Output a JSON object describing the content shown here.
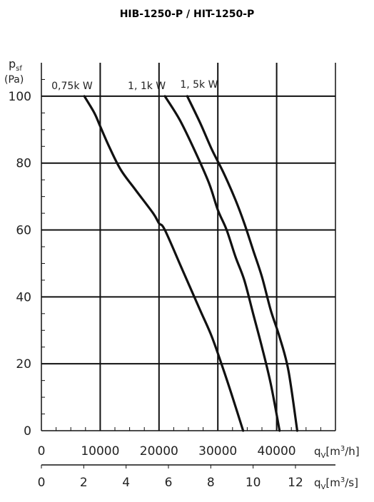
{
  "chart_data": {
    "type": "line",
    "title": "HIB-1250-P / HIT-1250-P",
    "ylabel": {
      "symbol": "p",
      "sub": "sf",
      "unit": "(Pa)"
    },
    "xlabel_primary": {
      "symbol": "q",
      "sub": "V",
      "unit_pre": "[m",
      "sup": "3",
      "unit_post": "/h]"
    },
    "xlabel_secondary": {
      "symbol": "q",
      "sub": "V",
      "unit_pre": "[m",
      "sup": "3",
      "unit_post": "/s]"
    },
    "xlim": [
      0,
      50000
    ],
    "ylim": [
      0,
      110
    ],
    "x_ticks": [
      0,
      10000,
      20000,
      30000,
      40000
    ],
    "x_tick_labels": [
      "0",
      "10000",
      "20000",
      "30000",
      "40000"
    ],
    "x2_ticks": [
      0,
      2,
      4,
      6,
      8,
      10,
      12
    ],
    "x2_tick_labels": [
      "0",
      "2",
      "4",
      "6",
      "8",
      "10",
      "12"
    ],
    "x2_factor": 3600,
    "y_ticks": [
      0,
      20,
      40,
      60,
      80,
      100
    ],
    "y_tick_labels": [
      "0",
      "20",
      "40",
      "60",
      "80",
      "100"
    ],
    "grid": true,
    "series": [
      {
        "name": "0,75k W",
        "x": [
          7300,
          9000,
          10000,
          11500,
          13500,
          16000,
          19000,
          20000,
          21000,
          24000,
          27000,
          29000,
          31000,
          32500,
          34300
        ],
        "y": [
          100,
          95,
          91,
          85,
          78,
          72,
          65,
          62,
          60,
          48,
          36,
          28,
          18,
          10,
          0
        ]
      },
      {
        "name": "1, 1k W",
        "x": [
          21000,
          23500,
          26000,
          28500,
          30000,
          31500,
          33000,
          34500,
          36000,
          37500,
          39000,
          40500
        ],
        "y": [
          100,
          93,
          84,
          74,
          66,
          60,
          52,
          45,
          35,
          25,
          14,
          0
        ]
      },
      {
        "name": "1, 5k W",
        "x": [
          24800,
          27000,
          29000,
          31000,
          33000,
          34500,
          36000,
          37500,
          39000,
          40500,
          42000,
          43500
        ],
        "y": [
          100,
          92,
          84,
          77,
          69,
          62,
          54,
          46,
          36,
          28,
          18,
          0
        ]
      }
    ]
  }
}
